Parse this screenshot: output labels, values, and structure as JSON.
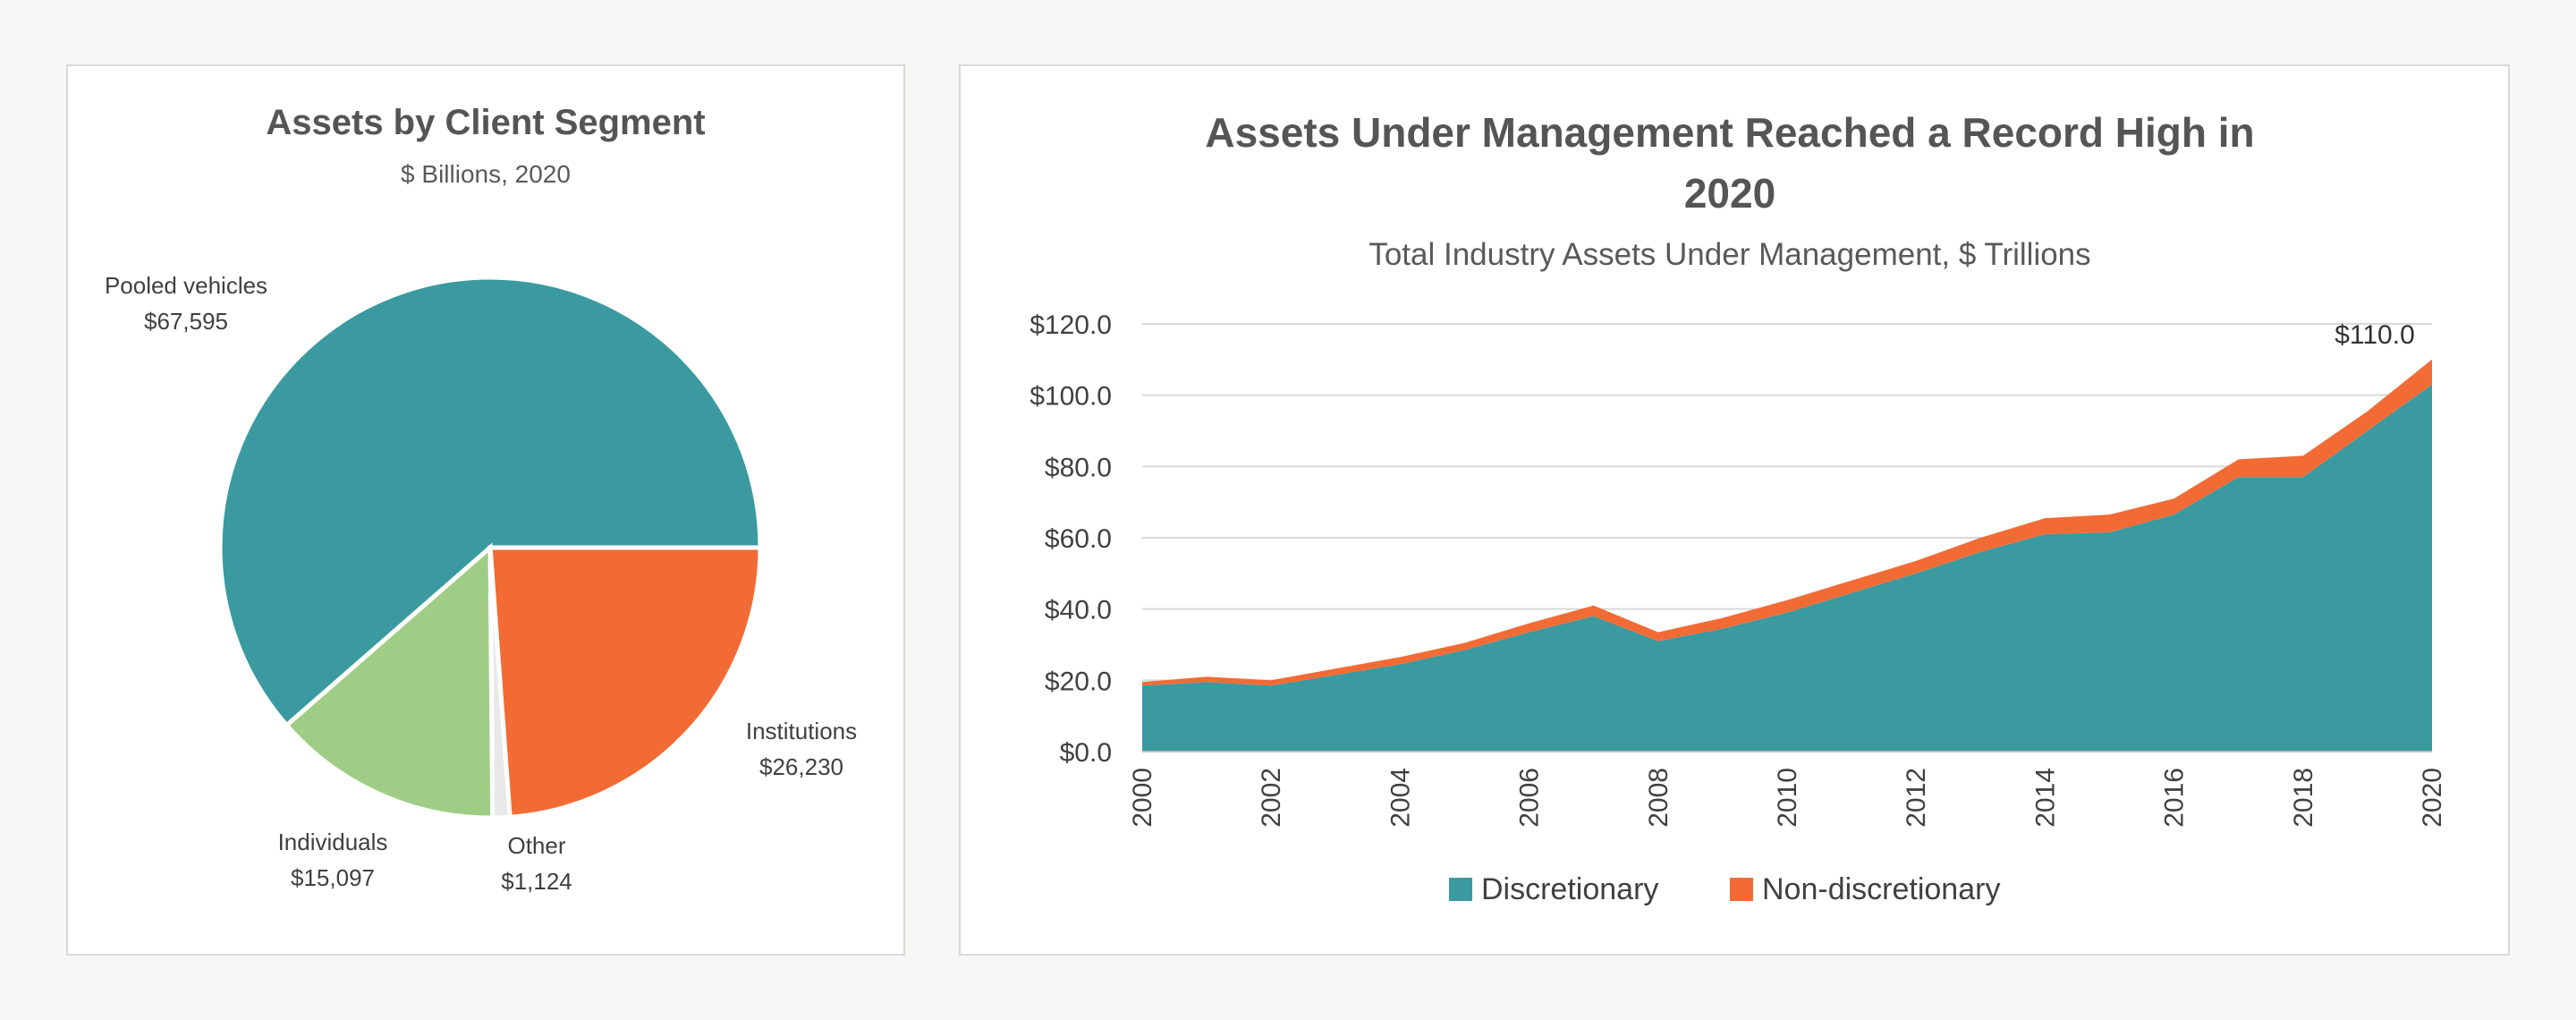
{
  "chart_data": [
    {
      "type": "pie",
      "title": "Assets by Client Segment",
      "subtitle": "$ Billions, 2020",
      "slices": [
        {
          "label": "Pooled vehicles",
          "value": 67595,
          "value_label": "$67,595",
          "color": "#3a9aa0"
        },
        {
          "label": "Institutions",
          "value": 26230,
          "value_label": "$26,230",
          "color": "#f26b35"
        },
        {
          "label": "Other",
          "value": 1124,
          "value_label": "$1,124",
          "color": "#e8e8e8"
        },
        {
          "label": "Individuals",
          "value": 15097,
          "value_label": "$15,097",
          "color": "#9fcd85"
        }
      ]
    },
    {
      "type": "area",
      "stacked": true,
      "title": "Assets Under Management Reached a Record High in 2020",
      "subtitle": "Total Industry Assets Under Management, $ Trillions",
      "x": [
        2000,
        2001,
        2002,
        2003,
        2004,
        2005,
        2006,
        2007,
        2008,
        2009,
        2010,
        2011,
        2012,
        2013,
        2014,
        2015,
        2016,
        2017,
        2018,
        2019,
        2020
      ],
      "x_tick_labels": [
        "2000",
        "2002",
        "2004",
        "2006",
        "2008",
        "2010",
        "2012",
        "2014",
        "2016",
        "2018",
        "2020"
      ],
      "ylim": [
        0,
        120
      ],
      "y_tick_labels": [
        "$0.0",
        "$20.0",
        "$40.0",
        "$60.0",
        "$80.0",
        "$100.0",
        "$120.0"
      ],
      "grid": true,
      "legend_position": "bottom",
      "series": [
        {
          "name": "Discretionary",
          "color": "#3a9aa0",
          "values": [
            18.5,
            19.5,
            18.5,
            21.5,
            24.5,
            28.5,
            33.5,
            38.0,
            31.0,
            34.5,
            39.0,
            44.5,
            50.0,
            56.0,
            61.0,
            61.5,
            66.5,
            77.0,
            77.0,
            90.0,
            103.0
          ]
        },
        {
          "name": "Non-discretionary",
          "color": "#f26b35",
          "values": [
            1.0,
            1.5,
            1.5,
            1.8,
            2.0,
            2.0,
            2.5,
            3.0,
            2.5,
            3.0,
            3.5,
            3.5,
            3.5,
            4.0,
            4.5,
            5.0,
            4.5,
            5.0,
            6.0,
            5.5,
            7.0
          ]
        }
      ],
      "annotation": {
        "x": 2020,
        "y": 110.0,
        "text": "$110.0"
      }
    }
  ]
}
